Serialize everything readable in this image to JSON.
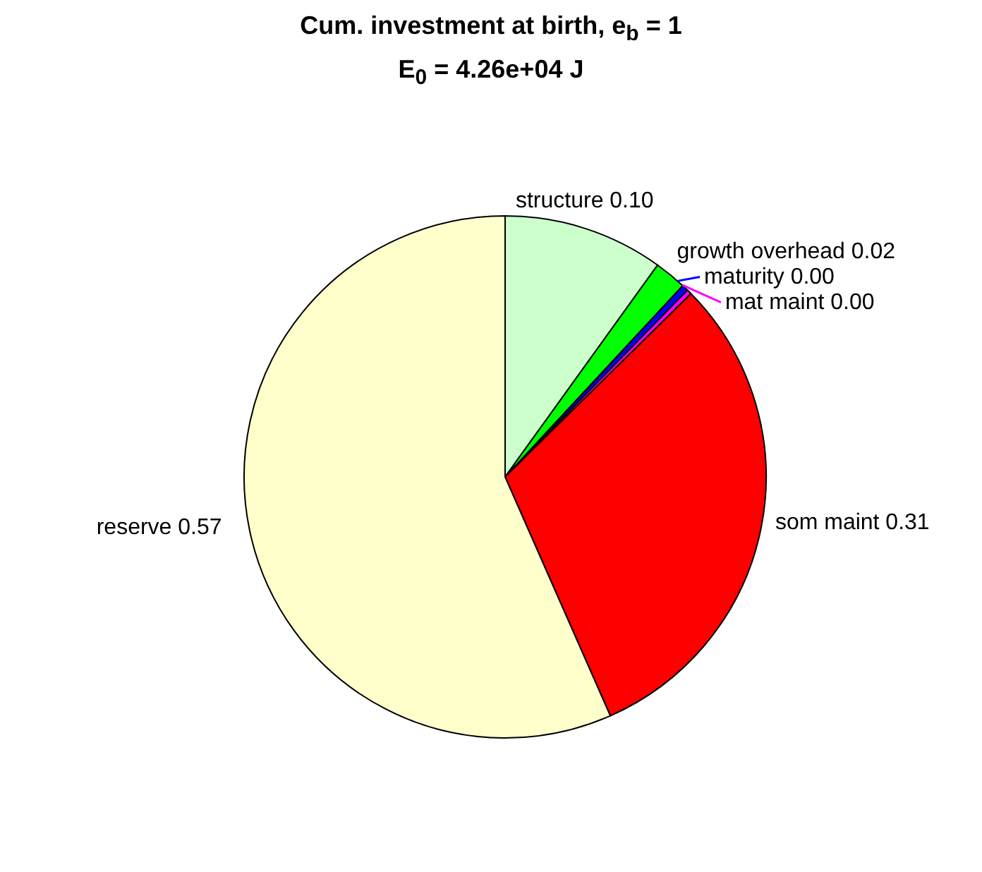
{
  "chart_data": {
    "type": "pie",
    "title": "Cum. investment at birth, e$_{b}$ = 1",
    "subtitle": "E$_{0}$ = 4.26e+04 J",
    "categories": [
      "structure",
      "growth overhead",
      "maturity",
      "mat maint",
      "som maint",
      "reserve"
    ],
    "values": [
      0.1,
      0.02,
      0.004,
      0.003,
      0.31,
      0.57
    ],
    "value_labels": [
      "0.10",
      "0.02",
      "0.00",
      "0.00",
      "0.31",
      "0.57"
    ],
    "colors": [
      "#ccffcc",
      "#00ff00",
      "#0000ff",
      "#ff00ff",
      "#ff0000",
      "#ffffcc"
    ],
    "legend": false
  }
}
